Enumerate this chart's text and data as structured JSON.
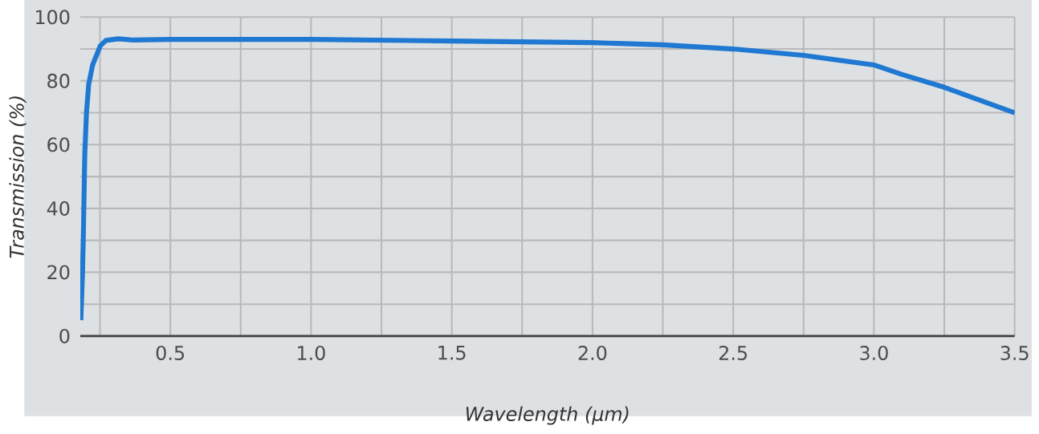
{
  "chart_data": {
    "type": "line",
    "xlabel": "Wavelength (µm)",
    "ylabel": "Transmission (%)",
    "x": [
      0.182,
      0.188,
      0.191,
      0.196,
      0.202,
      0.21,
      0.224,
      0.251,
      0.271,
      0.315,
      0.37,
      0.5,
      1.0,
      1.5,
      2.0,
      2.25,
      2.5,
      2.75,
      3.0,
      3.1,
      3.25,
      3.375,
      3.5
    ],
    "values": [
      5,
      20,
      32,
      57,
      70,
      79,
      85,
      91,
      92.7,
      93.2,
      92.8,
      93,
      93,
      92.5,
      92,
      91.3,
      90,
      88,
      85,
      82,
      78,
      74,
      70
    ],
    "color": "#1f78d1",
    "xlim": [
      0.18,
      3.5
    ],
    "ylim": [
      0,
      100
    ],
    "xticks": [
      {
        "value": 0.25,
        "label": null
      },
      0.5,
      {
        "value": 0.75,
        "label": null
      },
      {
        "value": 1,
        "label": "1.0"
      },
      {
        "value": 1.25,
        "label": null
      },
      1.5,
      {
        "value": 1.75,
        "label": null
      },
      {
        "value": 2,
        "label": "2.0"
      },
      {
        "value": 2.25,
        "label": null
      },
      2.5,
      {
        "value": 2.75,
        "label": null
      },
      {
        "value": 3,
        "label": "3.0"
      },
      {
        "value": 3.25,
        "label": null
      },
      3.5
    ],
    "yticks": [
      0,
      {
        "value": 10,
        "label": null
      },
      20,
      {
        "value": 30,
        "label": null
      },
      40,
      {
        "value": 50,
        "label": null
      },
      60,
      {
        "value": 70,
        "label": null
      },
      80,
      {
        "value": 90,
        "label": null
      },
      100
    ],
    "grid": true,
    "marker": "none",
    "line_style": "solid"
  }
}
